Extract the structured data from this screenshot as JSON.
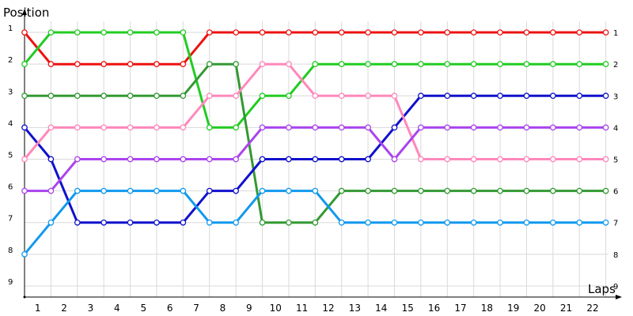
{
  "chart_data": {
    "type": "line",
    "title": "",
    "xlabel": "Laps",
    "ylabel": "Position",
    "x": [
      0,
      1,
      2,
      3,
      4,
      5,
      6,
      7,
      8,
      9,
      10,
      11,
      12,
      13,
      14,
      15,
      16,
      17,
      18,
      19,
      20,
      21,
      22
    ],
    "x_tick_labels": [
      "1",
      "2",
      "3",
      "4",
      "5",
      "6",
      "7",
      "8",
      "9",
      "10",
      "11",
      "12",
      "13",
      "14",
      "15",
      "16",
      "17",
      "18",
      "19",
      "20",
      "21",
      "22"
    ],
    "y_tick_labels": [
      "1",
      "2",
      "3",
      "4",
      "5",
      "6",
      "7",
      "8",
      "9"
    ],
    "ylim": [
      9.35,
      0.65
    ],
    "xlim": [
      0,
      22.1
    ],
    "grid": true,
    "series": [
      {
        "color": "#ee1111",
        "values": [
          1,
          2,
          2,
          2,
          2,
          2,
          2,
          1,
          1,
          1,
          1,
          1,
          1,
          1,
          1,
          1,
          1,
          1,
          1,
          1,
          1,
          1,
          1
        ]
      },
      {
        "color": "#22cc22",
        "values": [
          2,
          1,
          1,
          1,
          1,
          1,
          1,
          4,
          4,
          3,
          3,
          2,
          2,
          2,
          2,
          2,
          2,
          2,
          2,
          2,
          2,
          2,
          2
        ]
      },
      {
        "color": "#339933",
        "values": [
          3,
          3,
          3,
          3,
          3,
          3,
          3,
          2,
          2,
          7,
          7,
          7,
          6,
          6,
          6,
          6,
          6,
          6,
          6,
          6,
          6,
          6,
          6
        ]
      },
      {
        "color": "#1111cc",
        "values": [
          4,
          5,
          7,
          7,
          7,
          7,
          7,
          6,
          6,
          5,
          5,
          5,
          5,
          5,
          4,
          3,
          3,
          3,
          3,
          3,
          3,
          3,
          3
        ]
      },
      {
        "color": "#ff88bb",
        "values": [
          5,
          4,
          4,
          4,
          4,
          4,
          4,
          3,
          3,
          2,
          2,
          3,
          3,
          3,
          3,
          5,
          5,
          5,
          5,
          5,
          5,
          5,
          5
        ]
      },
      {
        "color": "#aa44ee",
        "values": [
          6,
          6,
          5,
          5,
          5,
          5,
          5,
          5,
          5,
          4,
          4,
          4,
          4,
          4,
          5,
          4,
          4,
          4,
          4,
          4,
          4,
          4,
          4
        ]
      },
      {
        "color": "#1199ee",
        "values": [
          8,
          7,
          6,
          6,
          6,
          6,
          6,
          7,
          7,
          6,
          6,
          6,
          7,
          7,
          7,
          7,
          7,
          7,
          7,
          7,
          7,
          7,
          7
        ]
      }
    ]
  }
}
